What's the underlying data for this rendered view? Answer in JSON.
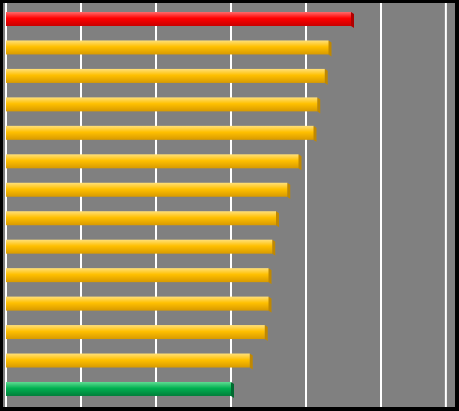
{
  "chart_data": {
    "type": "bar",
    "orientation": "horizontal",
    "title": "",
    "xlabel": "",
    "ylabel": "",
    "xlim": [
      0,
      100
    ],
    "grid": true,
    "legend": "none",
    "values": [
      92,
      86,
      85,
      83,
      82,
      78,
      75,
      72,
      71,
      70,
      70,
      69,
      65,
      60
    ],
    "bar_colors": [
      "#ff0000",
      "#ffc000",
      "#ffc000",
      "#ffc000",
      "#ffc000",
      "#ffc000",
      "#ffc000",
      "#ffc000",
      "#ffc000",
      "#ffc000",
      "#ffc000",
      "#ffc000",
      "#ffc000",
      "#00b050"
    ]
  },
  "colors": {
    "page_background": "#000000",
    "plot_background": "#808080",
    "gridline": "#ffffff",
    "highlight_top": "#ff0000",
    "default_bar": "#ffc000",
    "highlight_bottom": "#00b050"
  }
}
